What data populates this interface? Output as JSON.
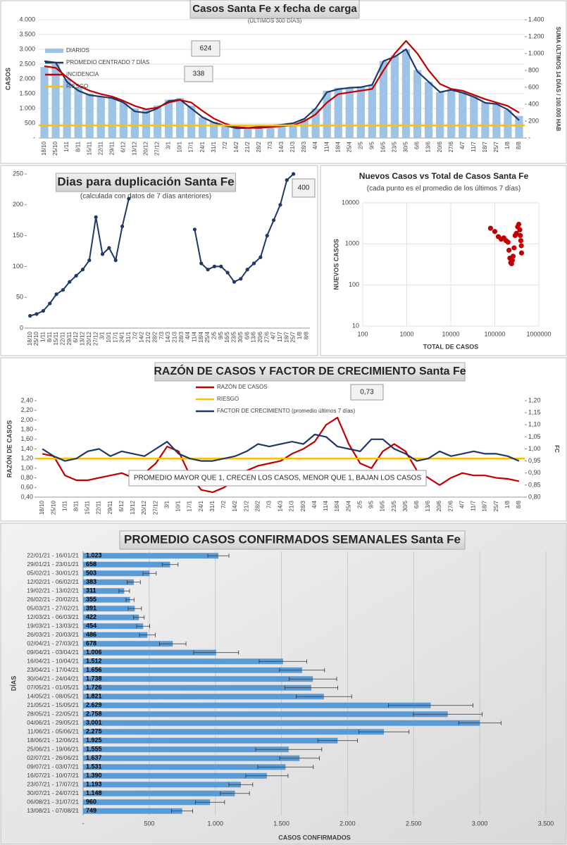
{
  "chart_data": [
    {
      "type": "bar",
      "title": "Casos Santa Fe x fecha de carga",
      "subtitle": "(ÚLTIMOS 300 DÍAS)",
      "ylabel": "CASOS",
      "y2label": "SUMA ÚLTIMOS 14 DÍAS / 100.000 HAB",
      "categories": [
        "18/10",
        "25/10",
        "1/11",
        "8/11",
        "15/11",
        "22/11",
        "29/11",
        "6/12",
        "13/12",
        "20/12",
        "27/12",
        "3/1",
        "10/1",
        "17/1",
        "24/1",
        "31/1",
        "7/2",
        "14/2",
        "21/2",
        "28/2",
        "7/3",
        "14/3",
        "21/3",
        "28/3",
        "4/4",
        "11/4",
        "18/4",
        "25/4",
        "2/5",
        "9/5",
        "16/5",
        "23/5",
        "30/5",
        "6/6",
        "13/6",
        "20/6",
        "27/6",
        "4/7",
        "11/7",
        "18/7",
        "25/7",
        "1/8",
        "8/8"
      ],
      "series": [
        {
          "name": "DIARIOS",
          "color": "#9dc3e6",
          "values": [
            2400,
            2500,
            2000,
            1700,
            1500,
            1400,
            1350,
            1200,
            1000,
            1000,
            1100,
            1300,
            1350,
            1100,
            700,
            550,
            450,
            350,
            350,
            400,
            430,
            450,
            500,
            650,
            1000,
            1600,
            1700,
            1700,
            1750,
            1800,
            2600,
            2800,
            3000,
            2300,
            1900,
            1550,
            1650,
            1550,
            1400,
            1200,
            1150,
            950,
            750
          ]
        },
        {
          "name": "PROMEDIO CENTRADO 7 DÍAS",
          "type": "line",
          "color": "#1f3864",
          "values": [
            2600,
            2550,
            1900,
            1600,
            1450,
            1400,
            1350,
            1200,
            900,
            850,
            1000,
            1250,
            1300,
            1000,
            700,
            520,
            420,
            330,
            340,
            380,
            420,
            450,
            500,
            650,
            1000,
            1550,
            1650,
            1700,
            1720,
            1800,
            2600,
            2750,
            3000,
            2250,
            1900,
            1550,
            1630,
            1530,
            1390,
            1190,
            1150,
            960,
            600
          ]
        },
        {
          "name": "INCIDENCIA",
          "type": "line",
          "color": "#c00000",
          "axis": "y2",
          "values": [
            850,
            830,
            720,
            620,
            560,
            520,
            490,
            440,
            380,
            340,
            360,
            420,
            450,
            420,
            320,
            230,
            170,
            130,
            120,
            120,
            130,
            140,
            150,
            200,
            280,
            420,
            520,
            540,
            560,
            580,
            800,
            1000,
            1150,
            1000,
            800,
            640,
            580,
            560,
            510,
            460,
            420,
            380,
            300
          ]
        },
        {
          "name": "RIESGO",
          "color": "#ffc000",
          "axis": "y2",
          "value": 150
        }
      ],
      "ylim": [
        0,
        4000
      ],
      "yticks": [
        {
          "value": 0,
          "label": "-"
        },
        500,
        {
          "value": 1000,
          "label": "1.000"
        },
        {
          "value": 1500,
          "label": "1.500"
        },
        {
          "value": 2000,
          "label": "2.000"
        },
        {
          "value": 2500,
          "label": "2.500"
        },
        {
          "value": 3000,
          "label": "3.000"
        },
        {
          "value": 3500,
          "label": "3.500"
        },
        {
          "value": 4000,
          "label": "4.000"
        }
      ],
      "y2lim": [
        0,
        1400
      ],
      "y2ticks": [
        {
          "value": 0,
          "label": "-"
        },
        200,
        400,
        600,
        800,
        {
          "value": 1000,
          "label": "1.000"
        },
        {
          "value": 1200,
          "label": "1.200"
        },
        {
          "value": 1400,
          "label": "1.400"
        }
      ],
      "grid": true,
      "legend": "upper left",
      "annotations": [
        "624",
        "338"
      ]
    },
    {
      "type": "line",
      "title": "Dias para duplicación Santa Fe",
      "subtitle": "(calculada con datos de 7 días anteriores)",
      "categories": [
        "18/10",
        "25/10",
        "1/11",
        "8/11",
        "15/11",
        "22/11",
        "29/11",
        "6/12",
        "13/12",
        "20/12",
        "27/12",
        "3/1",
        "10/1",
        "17/1",
        "24/1",
        "31/1",
        "7/2",
        "14/2",
        "21/2",
        "28/2",
        "7/3",
        "14/3",
        "21/3",
        "28/3",
        "4/4",
        "11/4",
        "18/4",
        "25/4",
        "2/5",
        "9/5",
        "16/5",
        "23/5",
        "30/5",
        "6/6",
        "13/6",
        "20/6",
        "27/6",
        "4/7",
        "11/7",
        "18/7",
        "25/7",
        "1/8",
        "8/8"
      ],
      "series": [
        {
          "color": "#1f3864",
          "values": [
            20,
            23,
            28,
            40,
            55,
            62,
            75,
            85,
            95,
            110,
            180,
            120,
            130,
            110,
            165,
            210,
            null,
            null,
            null,
            null,
            null,
            null,
            null,
            null,
            null,
            160,
            105,
            95,
            100,
            100,
            90,
            75,
            80,
            95,
            105,
            115,
            150,
            175,
            200,
            240,
            250,
            null,
            null
          ]
        }
      ],
      "markers": true,
      "ylim": [
        0,
        250
      ],
      "yticks": [
        0,
        50,
        100,
        150,
        200,
        250
      ],
      "grid": false,
      "annotations": [
        "400"
      ]
    },
    {
      "type": "scatter",
      "title": "Nuevos Casos vs Total de Casos Santa Fe",
      "subtitle": "(cada punto es el promedio de los últimos 7 días)",
      "xlabel": "TOTAL DE CASOS",
      "ylabel": "NUEVOS CASOS",
      "x": [
        80000,
        100000,
        120000,
        140000,
        160000,
        180000,
        200000,
        210000,
        220000,
        230000,
        240000,
        250000,
        260000,
        275000,
        290000,
        310000,
        330000,
        350000,
        370000,
        380000,
        390000,
        400000,
        405000
      ],
      "values": [
        2400,
        2000,
        1500,
        1300,
        1400,
        1200,
        1100,
        700,
        450,
        350,
        330,
        400,
        500,
        800,
        1600,
        1800,
        2600,
        3000,
        2200,
        1600,
        1200,
        900,
        600
      ],
      "color": "#c00000",
      "xlog": true,
      "ylog": true,
      "xlim": [
        100,
        1000000
      ],
      "ylim": [
        10,
        10000
      ],
      "xticks": [
        100,
        1000,
        10000,
        100000,
        1000000
      ],
      "yticks": [
        10,
        100,
        1000,
        10000
      ],
      "grid": true
    },
    {
      "type": "line",
      "title": "RAZÓN DE CASOS Y FACTOR DE CRECIMIENTO Santa Fe",
      "ylabel": "RAZÓN DE CASOS",
      "y2label": "FC",
      "categories": [
        "18/10",
        "25/10",
        "1/11",
        "8/11",
        "15/11",
        "22/11",
        "29/11",
        "6/12",
        "13/12",
        "20/12",
        "27/12",
        "3/1",
        "10/1",
        "17/1",
        "24/1",
        "31/1",
        "7/2",
        "14/2",
        "21/2",
        "28/2",
        "7/3",
        "14/3",
        "21/3",
        "28/3",
        "4/4",
        "11/4",
        "18/4",
        "25/4",
        "2/5",
        "9/5",
        "16/5",
        "23/5",
        "30/5",
        "6/6",
        "13/6",
        "20/6",
        "27/6",
        "4/7",
        "11/7",
        "18/7",
        "25/7",
        "1/8",
        "8/8"
      ],
      "series": [
        {
          "name": "RAZÓN DE CASOS",
          "color": "#c00000",
          "values": [
            1.3,
            1.25,
            0.85,
            0.75,
            0.75,
            0.8,
            0.85,
            0.9,
            0.8,
            0.9,
            1.1,
            1.45,
            1.35,
            0.85,
            0.55,
            0.5,
            0.6,
            0.75,
            0.95,
            1.05,
            1.1,
            1.15,
            1.3,
            1.4,
            1.55,
            1.9,
            2.05,
            1.5,
            1.1,
            1.0,
            1.35,
            1.5,
            1.35,
            0.95,
            0.8,
            0.65,
            0.8,
            0.9,
            0.85,
            0.85,
            0.8,
            0.78,
            0.73
          ]
        },
        {
          "name": "RIESGO",
          "color": "#ffc000",
          "value": 1.2
        },
        {
          "name": "FACTOR DE CRECIMIENTO (promedio últimos 7 días)",
          "color": "#1f3864",
          "axis": "y2",
          "values": [
            1.0,
            0.97,
            0.95,
            0.96,
            0.99,
            1.0,
            0.97,
            0.99,
            0.98,
            0.97,
            1.0,
            1.03,
            0.98,
            0.96,
            0.95,
            0.95,
            0.96,
            0.97,
            0.99,
            1.02,
            1.01,
            1.02,
            1.03,
            1.02,
            1.06,
            1.05,
            1.01,
            1.0,
            0.99,
            1.04,
            1.04,
            1.0,
            0.98,
            0.95,
            0.96,
            0.99,
            0.97,
            0.98,
            0.99,
            0.98,
            0.98,
            0.97,
            0.95
          ]
        }
      ],
      "ylim": [
        0.4,
        2.4
      ],
      "yticks": [
        {
          "value": 0.4,
          "label": "0,40"
        },
        {
          "value": 0.6,
          "label": "0,60"
        },
        {
          "value": 0.8,
          "label": "0,80"
        },
        {
          "value": 1.0,
          "label": "1,00"
        },
        {
          "value": 1.2,
          "label": "1,20"
        },
        {
          "value": 1.4,
          "label": "1,40"
        },
        {
          "value": 1.6,
          "label": "1,60"
        },
        {
          "value": 1.8,
          "label": "1,80"
        },
        {
          "value": 2.0,
          "label": "2,00"
        },
        {
          "value": 2.2,
          "label": "2,20"
        },
        {
          "value": 2.4,
          "label": "2,40"
        }
      ],
      "y2lim": [
        0.8,
        1.2
      ],
      "y2ticks": [
        {
          "value": 0.8,
          "label": "0,80"
        },
        {
          "value": 0.85,
          "label": "0,85"
        },
        {
          "value": 0.9,
          "label": "0,90"
        },
        {
          "value": 0.95,
          "label": "0,95"
        },
        {
          "value": 1.0,
          "label": "1,00"
        },
        {
          "value": 1.05,
          "label": "1,05"
        },
        {
          "value": 1.1,
          "label": "1,10"
        },
        {
          "value": 1.15,
          "label": "1,15"
        },
        {
          "value": 1.2,
          "label": "1,20"
        }
      ],
      "grid": false,
      "legend": "upper center",
      "annotations": [
        "0,73",
        "PROMEDIO MAYOR QUE 1, CRECEN LOS CASOS, MENOR QUE 1, BAJAN LOS CASOS"
      ]
    },
    {
      "type": "bar",
      "orientation": "horizontal",
      "title": "PROMEDIO CASOS CONFIRMADOS SEMANALES Santa Fe",
      "xlabel": "CASOS CONFIRMADOS",
      "ylabel": "DÍAS",
      "categories": [
        "22/01/21 - 16/01/21",
        "29/01/21 - 23/01/21",
        "05/02/21 - 30/01/21",
        "12/02/21 - 06/02/21",
        "19/02/21 - 13/02/21",
        "26/02/21 - 20/02/21",
        "05/03/21 - 27/02/21",
        "12/03/21 - 06/03/21",
        "19/03/21 - 13/03/21",
        "26/03/21 - 20/03/21",
        "02/04/21 - 27/03/21",
        "09/04/21 - 03/04/21",
        "16/04/21 - 10/04/21",
        "23/04/21 - 17/04/21",
        "30/04/21 - 24/04/21",
        "07/05/21 - 01/05/21",
        "14/05/21 - 08/05/21",
        "21/05/21 - 15/05/21",
        "28/05/21 - 22/05/21",
        "04/06/21 - 29/05/21",
        "11/06/21 - 05/06/21",
        "18/06/21 - 12/06/21",
        "25/06/21 - 19/06/21",
        "02/07/21 - 26/06/21",
        "09/07/21 - 03/07/21",
        "16/07/21 - 10/07/21",
        "23/07/21 - 17/07/21",
        "30/07/21 - 24/07/21",
        "06/08/21 - 31/07/21",
        "13/08/21 - 07/08/21"
      ],
      "values": [
        1023,
        658,
        503,
        383,
        311,
        355,
        391,
        422,
        454,
        486,
        678,
        1006,
        1512,
        1656,
        1738,
        1726,
        1821,
        2629,
        2758,
        3001,
        2275,
        1925,
        1555,
        1637,
        1531,
        1390,
        1193,
        1148,
        960,
        749
      ],
      "value_labels": [
        "1.023",
        "658",
        "503",
        "383",
        "311",
        "355",
        "391",
        "422",
        "454",
        "486",
        "678",
        "1.006",
        "1.512",
        "1.656",
        "1.738",
        "1.726",
        "1.821",
        "2.629",
        "2.758",
        "3.001",
        "2.275",
        "1.925",
        "1.555",
        "1.637",
        "1.531",
        "1.390",
        "1.193",
        "1.148",
        "960",
        "749"
      ],
      "errors": [
        80,
        60,
        50,
        50,
        40,
        30,
        50,
        40,
        50,
        60,
        100,
        170,
        180,
        170,
        180,
        200,
        210,
        320,
        260,
        160,
        190,
        150,
        250,
        150,
        210,
        160,
        90,
        110,
        110,
        80
      ],
      "color": "#5b9bd5",
      "xlim": [
        0,
        3500
      ],
      "xticks": [
        {
          "value": 0,
          "label": "-"
        },
        500,
        {
          "value": 1000,
          "label": "1.000"
        },
        {
          "value": 1500,
          "label": "1.500"
        },
        {
          "value": 2000,
          "label": "2.000"
        },
        {
          "value": 2500,
          "label": "2.500"
        },
        {
          "value": 3000,
          "label": "3.000"
        },
        {
          "value": 3500,
          "label": "3.500"
        }
      ],
      "grid": true
    }
  ]
}
